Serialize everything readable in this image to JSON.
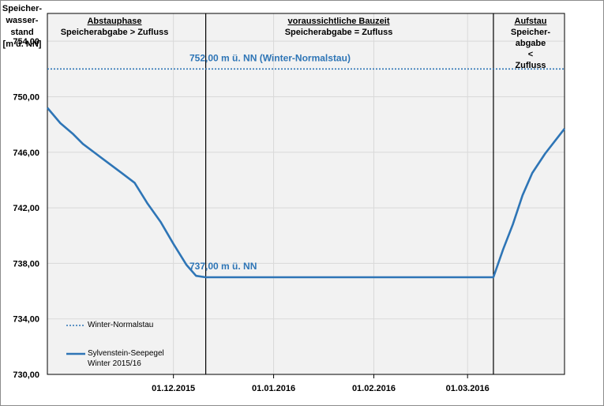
{
  "y_title": "Speicher-\nwasser-\nstand\n[m ü. NN]",
  "phases": [
    {
      "title": "Abstauphase",
      "sub": "Speicherabgabe > Zufluss"
    },
    {
      "title": "voraussichtliche Bauzeit",
      "sub": "Speicherabgabe = Zufluss"
    },
    {
      "title": "Aufstau",
      "sub": "Speicher-\nabgabe\n<\nZufluss"
    }
  ],
  "annotations": {
    "normalstau": "752,00 m ü. NN (Winter-Normalstau)",
    "min_level": "737,00 m ü. NN"
  },
  "legend": {
    "normalstau": "Winter-Normalstau",
    "series": "Sylvenstein-Seepegel\nWinter 2015/16"
  },
  "colors": {
    "series": "#2e75b6",
    "normalstau": "#2e75b6",
    "plot_bg": "#f2f2f2",
    "grid": "#d9d9d9"
  },
  "chart_data": {
    "type": "line",
    "xlim": [
      "2015-10-23",
      "2016-03-31"
    ],
    "ylim": [
      730,
      756
    ],
    "yticks": [
      "730,00",
      "734,00",
      "738,00",
      "742,00",
      "746,00",
      "750,00",
      "754,00"
    ],
    "ytick_values": [
      730,
      734,
      738,
      742,
      746,
      750,
      754
    ],
    "xticks": [
      "01.12.2015",
      "01.01.2016",
      "01.02.2016",
      "01.03.2016"
    ],
    "xtick_dates": [
      "2015-12-01",
      "2016-01-01",
      "2016-02-01",
      "2016-03-01"
    ],
    "phase_boundaries": [
      "2015-12-11",
      "2016-03-09"
    ],
    "series": [
      {
        "name": "Sylvenstein-Seepegel Winter 2015/16",
        "style": "solid",
        "x": [
          "2015-10-23",
          "2015-10-27",
          "2015-10-31",
          "2015-11-03",
          "2015-11-07",
          "2015-11-11",
          "2015-11-15",
          "2015-11-19",
          "2015-11-23",
          "2015-11-27",
          "2015-12-01",
          "2015-12-05",
          "2015-12-08",
          "2015-12-11",
          "2016-01-01",
          "2016-02-01",
          "2016-03-01",
          "2016-03-09",
          "2016-03-12",
          "2016-03-15",
          "2016-03-18",
          "2016-03-21",
          "2016-03-25",
          "2016-03-28",
          "2016-03-31"
        ],
        "y": [
          749.2,
          748.1,
          747.3,
          746.6,
          745.9,
          745.2,
          744.5,
          743.8,
          742.3,
          741.0,
          739.4,
          737.9,
          737.1,
          737.0,
          737.0,
          737.0,
          737.0,
          737.0,
          739.0,
          740.8,
          742.9,
          744.5,
          745.9,
          746.8,
          747.7
        ]
      },
      {
        "name": "Winter-Normalstau",
        "style": "dotted",
        "x": [
          "2015-10-23",
          "2016-03-31"
        ],
        "y": [
          752,
          752
        ]
      }
    ]
  }
}
